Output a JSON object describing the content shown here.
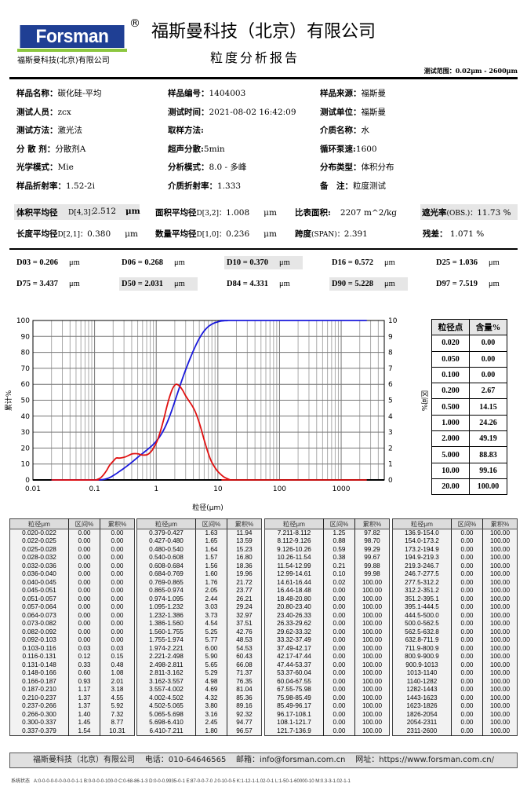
{
  "header": {
    "logo_text": "Forsman",
    "logo_subtitle": "福斯曼科技(北京)有限公司",
    "registered_mark": "®",
    "company_name": "福斯曼科技（北京）有限公司",
    "report_title": "粒度分析报告",
    "test_range": "测试范围：0.02μm - 2600μm"
  },
  "info": {
    "rows": [
      [
        {
          "label": "样品名称：",
          "value": "碳化硅-平均"
        },
        {
          "label": "样品编号：",
          "value": "1404003"
        },
        {
          "label": "样品来源：",
          "value": "福斯曼"
        }
      ],
      [
        {
          "label": "测试人员：",
          "value": "zcx"
        },
        {
          "label": "测试时间：",
          "value": "2021-08-02  16:42:09"
        },
        {
          "label": "测试单位：",
          "value": "福斯曼"
        }
      ],
      [
        {
          "label": "测试方法：",
          "value": "激光法"
        },
        {
          "label": "取样方法:",
          "value": ""
        },
        {
          "label": "介质名称：",
          "value": "水"
        }
      ],
      [
        {
          "label": "分 散 剂：",
          "value": "分散剂A"
        },
        {
          "label": "超声分散:",
          "value": "5min"
        },
        {
          "label": "循环泵速:",
          "value": "1600"
        }
      ],
      [
        {
          "label": "光学模式：",
          "value": "Mie"
        },
        {
          "label": "分析模式：",
          "value": "8.0 - 多峰"
        },
        {
          "label": "分布类型：",
          "value": "体积分布"
        }
      ],
      [
        {
          "label": "样品折射率：",
          "value": "1.52-2i"
        },
        {
          "label": "介质折射率：",
          "value": "1.333"
        },
        {
          "label": "备　注：",
          "value": "粒度测试"
        }
      ]
    ]
  },
  "stats": {
    "d43": {
      "label": "体积平均径",
      "sub": "D[4,3]：",
      "value": "2.512",
      "unit": "μm"
    },
    "d32": {
      "label": "面积平均径",
      "sub": "D[3,2]：",
      "value": "1.008",
      "unit": "μm"
    },
    "ssa": {
      "label": "比表面积:",
      "value": "2207",
      "unit": "m^2/kg"
    },
    "obs": {
      "label": "遮光率",
      "sub": "(OBS.)：",
      "value": "11.73",
      "unit": "%"
    },
    "d21": {
      "label": "长度平均径",
      "sub": "D[2,1]：",
      "value": "0.380",
      "unit": "μm"
    },
    "d10m": {
      "label": "数量平均径",
      "sub": "D[1,0]：",
      "value": "0.236",
      "unit": "μm"
    },
    "span": {
      "label": "跨度",
      "sub": "(SPAN)：",
      "value": "2.391"
    },
    "residual": {
      "label": "残差：",
      "value": "1.071",
      "unit": "%"
    }
  },
  "dvalues": [
    {
      "label": "D03 = 0.206",
      "unit": "μm",
      "shaded": false
    },
    {
      "label": "D06 = 0.268",
      "unit": "μm",
      "shaded": false
    },
    {
      "label": "D10 = 0.370",
      "unit": "μm",
      "shaded": true
    },
    {
      "label": "D16 = 0.572",
      "unit": "μm",
      "shaded": false
    },
    {
      "label": "D25 = 1.036",
      "unit": "μm",
      "shaded": false
    },
    {
      "label": "D75 = 3.437",
      "unit": "μm",
      "shaded": false
    },
    {
      "label": "D50 = 2.031",
      "unit": "μm",
      "shaded": true
    },
    {
      "label": "D84 = 4.331",
      "unit": "μm",
      "shaded": false
    },
    {
      "label": "D90 = 5.228",
      "unit": "μm",
      "shaded": true
    },
    {
      "label": "D97 = 7.519",
      "unit": "μm",
      "shaded": false
    }
  ],
  "chart_data": {
    "type": "line",
    "title": "",
    "xlabel": "粒径(μm)",
    "ylabel": "累计%",
    "y2label": "区间%",
    "xscale": "log",
    "xlim": [
      0.01,
      5000
    ],
    "ylim": [
      0,
      100
    ],
    "y2lim": [
      0,
      10
    ],
    "xticks": [
      "0.01",
      "0.1",
      "1",
      "10",
      "100",
      "1000"
    ],
    "yticks": [
      "0",
      "10",
      "20",
      "30",
      "40",
      "50",
      "60",
      "70",
      "80",
      "90",
      "100"
    ],
    "y2ticks": [
      "0",
      "1",
      "2",
      "3",
      "4",
      "5",
      "6",
      "7",
      "8",
      "9",
      "10"
    ],
    "grid": true,
    "series": [
      {
        "name": "累计%",
        "color": "#1a1adb",
        "axis": "left",
        "x": [
          0.02,
          0.1,
          0.116,
          0.131,
          0.148,
          0.166,
          0.187,
          0.21,
          0.237,
          0.266,
          0.3,
          0.337,
          0.379,
          0.427,
          0.48,
          0.54,
          0.608,
          0.684,
          0.769,
          0.865,
          0.974,
          1.095,
          1.232,
          1.386,
          1.56,
          1.755,
          1.974,
          2.221,
          2.498,
          2.811,
          3.162,
          3.557,
          4.002,
          4.502,
          5.065,
          5.698,
          6.41,
          7.211,
          8.112,
          9.126,
          10.26,
          11.54,
          12.99,
          14.61,
          16.44,
          2600
        ],
        "y": [
          0,
          0,
          0.03,
          0.15,
          0.48,
          1.08,
          2.01,
          3.18,
          4.55,
          5.92,
          7.32,
          8.77,
          10.31,
          11.94,
          13.59,
          15.23,
          16.8,
          18.36,
          19.96,
          21.72,
          23.77,
          26.21,
          29.24,
          32.97,
          37.51,
          42.76,
          48.53,
          54.53,
          60.43,
          66.08,
          71.37,
          76.35,
          81.04,
          85.36,
          89.16,
          92.32,
          94.77,
          96.57,
          97.82,
          98.7,
          99.29,
          99.67,
          99.88,
          99.98,
          100,
          100
        ]
      },
      {
        "name": "区间%",
        "color": "#e01010",
        "axis": "right",
        "x": [
          0.02,
          0.1,
          0.11,
          0.124,
          0.14,
          0.157,
          0.176,
          0.2,
          0.224,
          0.252,
          0.283,
          0.318,
          0.358,
          0.403,
          0.453,
          0.51,
          0.574,
          0.646,
          0.726,
          0.817,
          0.92,
          1.035,
          1.164,
          1.309,
          1.473,
          1.658,
          1.865,
          2.098,
          2.36,
          2.655,
          2.987,
          3.36,
          3.78,
          4.252,
          4.784,
          5.382,
          6.054,
          6.81,
          7.662,
          8.619,
          9.693,
          10.9,
          12.26,
          13.8,
          15.53,
          17.46,
          2600
        ],
        "y": [
          0,
          0,
          0.03,
          0.12,
          0.33,
          0.6,
          0.93,
          1.17,
          1.37,
          1.37,
          1.4,
          1.45,
          1.54,
          1.63,
          1.65,
          1.64,
          1.57,
          1.56,
          1.6,
          1.76,
          2.05,
          2.44,
          3.03,
          3.73,
          4.54,
          5.25,
          5.77,
          6.0,
          5.9,
          5.65,
          5.29,
          4.98,
          4.69,
          4.32,
          3.8,
          3.16,
          2.45,
          1.8,
          1.25,
          0.88,
          0.59,
          0.38,
          0.21,
          0.1,
          0.02,
          0,
          0
        ]
      }
    ]
  },
  "points_table": {
    "headers": [
      "粒径点",
      "含量%"
    ],
    "rows": [
      [
        "0.020",
        "0.00"
      ],
      [
        "0.050",
        "0.00"
      ],
      [
        "0.100",
        "0.00"
      ],
      [
        "0.200",
        "2.67"
      ],
      [
        "0.500",
        "14.15"
      ],
      [
        "1.000",
        "24.26"
      ],
      [
        "2.000",
        "49.19"
      ],
      [
        "5.000",
        "88.83"
      ],
      [
        "10.00",
        "99.16"
      ],
      [
        "20.00",
        "100.00"
      ]
    ]
  },
  "data_table": {
    "headers": [
      "粒径μm",
      "区间%",
      "累积%"
    ],
    "blocks": [
      [
        [
          "0.020-0.022",
          "0.00",
          "0.00"
        ],
        [
          "0.022-0.025",
          "0.00",
          "0.00"
        ],
        [
          "0.025-0.028",
          "0.00",
          "0.00"
        ],
        [
          "0.028-0.032",
          "0.00",
          "0.00"
        ],
        [
          "0.032-0.036",
          "0.00",
          "0.00"
        ],
        [
          "0.036-0.040",
          "0.00",
          "0.00"
        ],
        [
          "0.040-0.045",
          "0.00",
          "0.00"
        ],
        [
          "0.045-0.051",
          "0.00",
          "0.00"
        ],
        [
          "0.051-0.057",
          "0.00",
          "0.00"
        ],
        [
          "0.057-0.064",
          "0.00",
          "0.00"
        ],
        [
          "0.064-0.073",
          "0.00",
          "0.00"
        ],
        [
          "0.073-0.082",
          "0.00",
          "0.00"
        ],
        [
          "0.082-0.092",
          "0.00",
          "0.00"
        ],
        [
          "0.092-0.103",
          "0.00",
          "0.00"
        ],
        [
          "0.103-0.116",
          "0.03",
          "0.03"
        ],
        [
          "0.116-0.131",
          "0.12",
          "0.15"
        ],
        [
          "0.131-0.148",
          "0.33",
          "0.48"
        ],
        [
          "0.148-0.166",
          "0.60",
          "1.08"
        ],
        [
          "0.166-0.187",
          "0.93",
          "2.01"
        ],
        [
          "0.187-0.210",
          "1.17",
          "3.18"
        ],
        [
          "0.210-0.237",
          "1.37",
          "4.55"
        ],
        [
          "0.237-0.266",
          "1.37",
          "5.92"
        ],
        [
          "0.266-0.300",
          "1.40",
          "7.32"
        ],
        [
          "0.300-0.337",
          "1.45",
          "8.77"
        ],
        [
          "0.337-0.379",
          "1.54",
          "10.31"
        ]
      ],
      [
        [
          "0.379-0.427",
          "1.63",
          "11.94"
        ],
        [
          "0.427-0.480",
          "1.65",
          "13.59"
        ],
        [
          "0.480-0.540",
          "1.64",
          "15.23"
        ],
        [
          "0.540-0.608",
          "1.57",
          "16.80"
        ],
        [
          "0.608-0.684",
          "1.56",
          "18.36"
        ],
        [
          "0.684-0.769",
          "1.60",
          "19.96"
        ],
        [
          "0.769-0.865",
          "1.76",
          "21.72"
        ],
        [
          "0.865-0.974",
          "2.05",
          "23.77"
        ],
        [
          "0.974-1.095",
          "2.44",
          "26.21"
        ],
        [
          "1.095-1.232",
          "3.03",
          "29.24"
        ],
        [
          "1.232-1.386",
          "3.73",
          "32.97"
        ],
        [
          "1.386-1.560",
          "4.54",
          "37.51"
        ],
        [
          "1.560-1.755",
          "5.25",
          "42.76"
        ],
        [
          "1.755-1.974",
          "5.77",
          "48.53"
        ],
        [
          "1.974-2.221",
          "6.00",
          "54.53"
        ],
        [
          "2.221-2.498",
          "5.90",
          "60.43"
        ],
        [
          "2.498-2.811",
          "5.65",
          "66.08"
        ],
        [
          "2.811-3.162",
          "5.29",
          "71.37"
        ],
        [
          "3.162-3.557",
          "4.98",
          "76.35"
        ],
        [
          "3.557-4.002",
          "4.69",
          "81.04"
        ],
        [
          "4.002-4.502",
          "4.32",
          "85.36"
        ],
        [
          "4.502-5.065",
          "3.80",
          "89.16"
        ],
        [
          "5.065-5.698",
          "3.16",
          "92.32"
        ],
        [
          "5.698-6.410",
          "2.45",
          "94.77"
        ],
        [
          "6.410-7.211",
          "1.80",
          "96.57"
        ]
      ],
      [
        [
          "7.211-8.112",
          "1.25",
          "97.82"
        ],
        [
          "8.112-9.126",
          "0.88",
          "98.70"
        ],
        [
          "9.126-10.26",
          "0.59",
          "99.29"
        ],
        [
          "10.26-11.54",
          "0.38",
          "99.67"
        ],
        [
          "11.54-12.99",
          "0.21",
          "99.88"
        ],
        [
          "12.99-14.61",
          "0.10",
          "99.98"
        ],
        [
          "14.61-16.44",
          "0.02",
          "100.00"
        ],
        [
          "16.44-18.48",
          "0.00",
          "100.00"
        ],
        [
          "18.48-20.80",
          "0.00",
          "100.00"
        ],
        [
          "20.80-23.40",
          "0.00",
          "100.00"
        ],
        [
          "23.40-26.33",
          "0.00",
          "100.00"
        ],
        [
          "26.33-29.62",
          "0.00",
          "100.00"
        ],
        [
          "29.62-33.32",
          "0.00",
          "100.00"
        ],
        [
          "33.32-37.49",
          "0.00",
          "100.00"
        ],
        [
          "37.49-42.17",
          "0.00",
          "100.00"
        ],
        [
          "42.17-47.44",
          "0.00",
          "100.00"
        ],
        [
          "47.44-53.37",
          "0.00",
          "100.00"
        ],
        [
          "53.37-60.04",
          "0.00",
          "100.00"
        ],
        [
          "60.04-67.55",
          "0.00",
          "100.00"
        ],
        [
          "67.55-75.98",
          "0.00",
          "100.00"
        ],
        [
          "75.98-85.49",
          "0.00",
          "100.00"
        ],
        [
          "85.49-96.17",
          "0.00",
          "100.00"
        ],
        [
          "96.17-108.1",
          "0.00",
          "100.00"
        ],
        [
          "108.1-121.7",
          "0.00",
          "100.00"
        ],
        [
          "121.7-136.9",
          "0.00",
          "100.00"
        ]
      ],
      [
        [
          "136.9-154.0",
          "0.00",
          "100.00"
        ],
        [
          "154.0-173.2",
          "0.00",
          "100.00"
        ],
        [
          "173.2-194.9",
          "0.00",
          "100.00"
        ],
        [
          "194.9-219.3",
          "0.00",
          "100.00"
        ],
        [
          "219.3-246.7",
          "0.00",
          "100.00"
        ],
        [
          "246.7-277.5",
          "0.00",
          "100.00"
        ],
        [
          "277.5-312.2",
          "0.00",
          "100.00"
        ],
        [
          "312.2-351.2",
          "0.00",
          "100.00"
        ],
        [
          "351.2-395.1",
          "0.00",
          "100.00"
        ],
        [
          "395.1-444.5",
          "0.00",
          "100.00"
        ],
        [
          "444.5-500.0",
          "0.00",
          "100.00"
        ],
        [
          "500.0-562.5",
          "0.00",
          "100.00"
        ],
        [
          "562.5-632.8",
          "0.00",
          "100.00"
        ],
        [
          "632.8-711.9",
          "0.00",
          "100.00"
        ],
        [
          "711.9-800.9",
          "0.00",
          "100.00"
        ],
        [
          "800.9-900.9",
          "0.00",
          "100.00"
        ],
        [
          "900.9-1013",
          "0.00",
          "100.00"
        ],
        [
          "1013-1140",
          "0.00",
          "100.00"
        ],
        [
          "1140-1282",
          "0.00",
          "100.00"
        ],
        [
          "1282-1443",
          "0.00",
          "100.00"
        ],
        [
          "1443-1623",
          "0.00",
          "100.00"
        ],
        [
          "1623-1826",
          "0.00",
          "100.00"
        ],
        [
          "1826-2054",
          "0.00",
          "100.00"
        ],
        [
          "2054-2311",
          "0.00",
          "100.00"
        ],
        [
          "2311-2600",
          "0.00",
          "100.00"
        ]
      ]
    ]
  },
  "footer": {
    "company": "福斯曼科技（北京）有限公司",
    "phone_label": "电话：",
    "phone": "010-64646565",
    "email_label": "邮箱：",
    "email": "info@forsman.com.cn",
    "web_label": "网址：",
    "web": "https://www.forsman.com.cn/",
    "system_status_label": "系统状态",
    "system_status": "A:0-0-0-0-0-0-0-0-0-1-1  B:0-0-0-0-100-0  C:0-68-86-1-3  D:0-0-0.9935-0-1  E:87-0-0-7-0  J:0-10-0-5  K:1-12-1-1.02-0-1  L:1-50-1-60000-10  M:0.3-3-1.02-1-1"
  }
}
